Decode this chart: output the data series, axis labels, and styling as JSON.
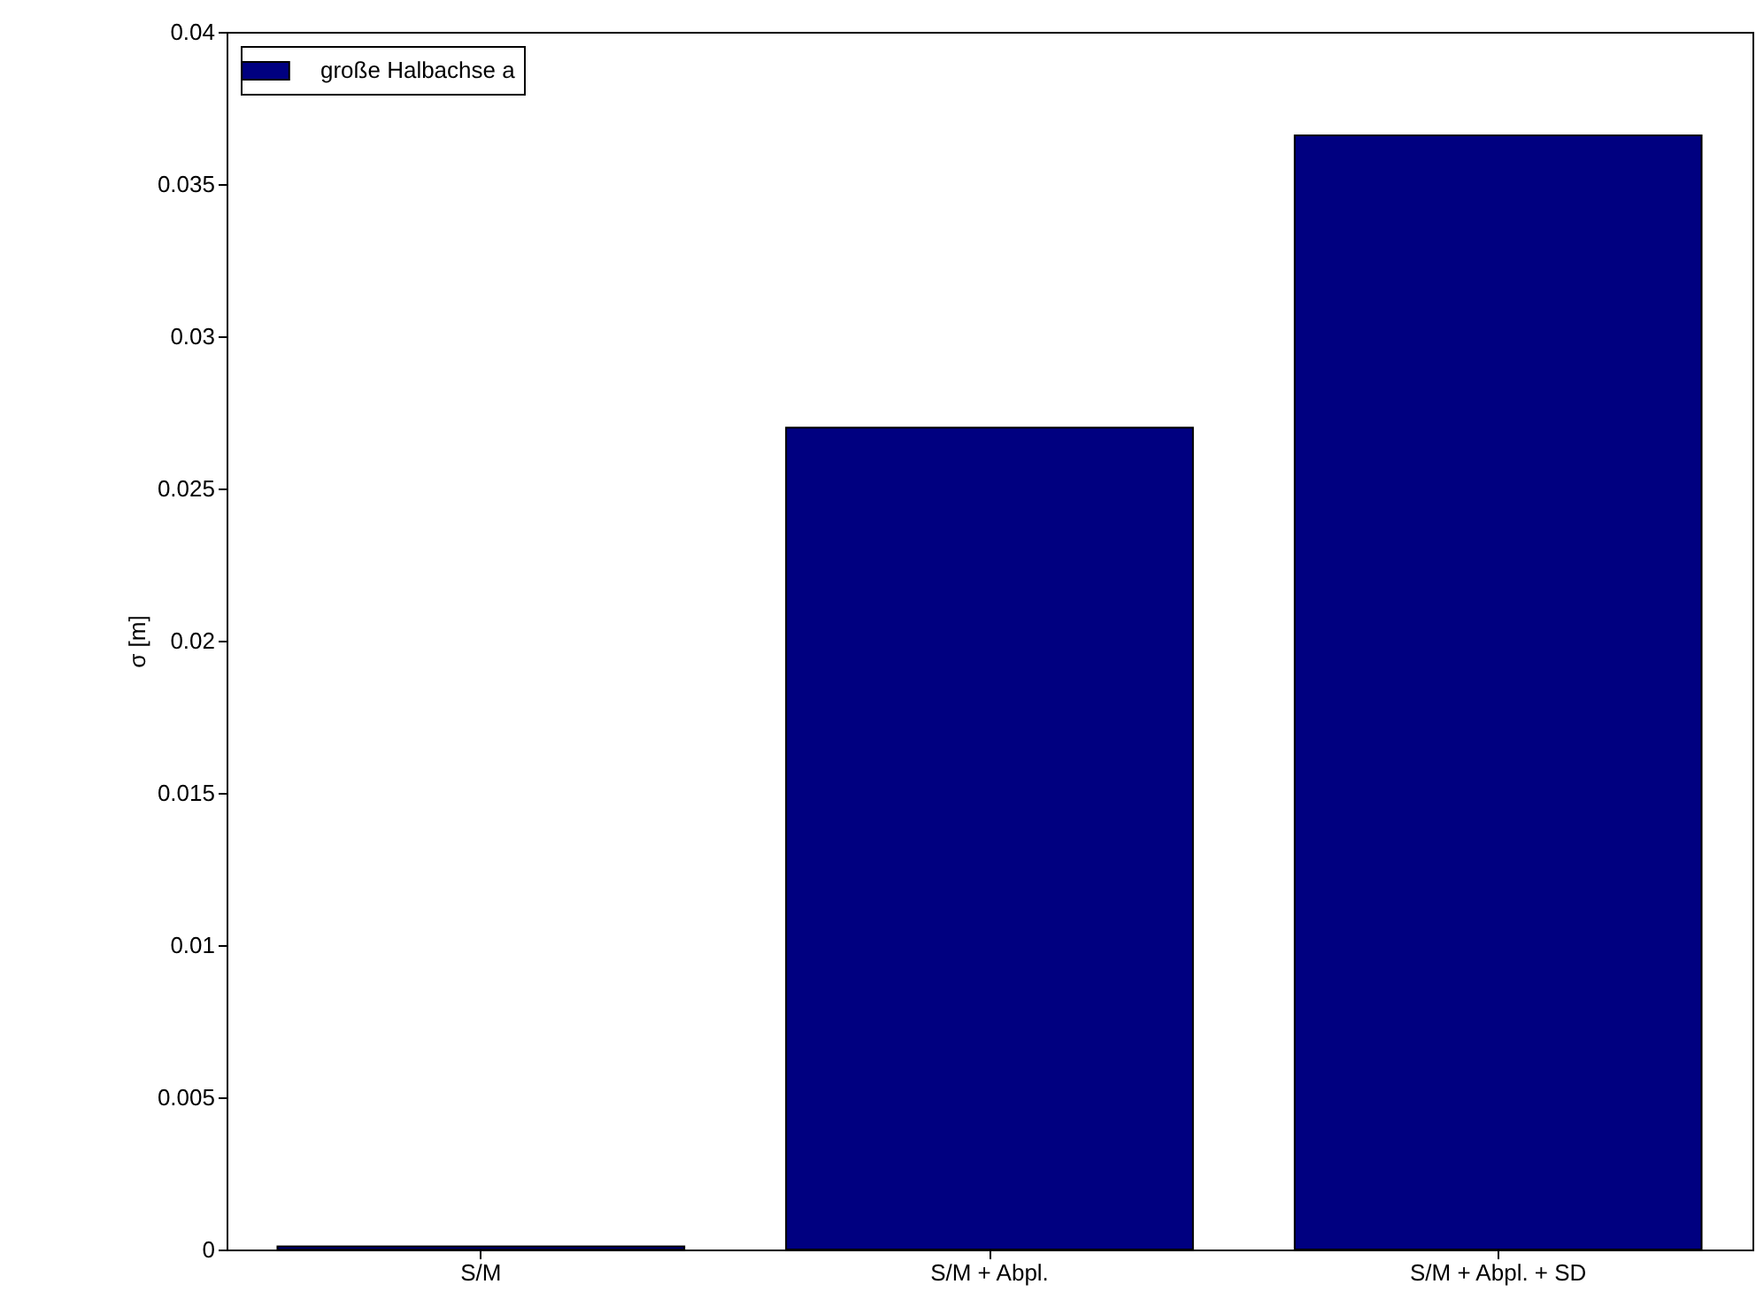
{
  "chart_data": {
    "type": "bar",
    "ylabel": "σ [m]",
    "categories": [
      "S/M",
      "S/M + Abpl.",
      "S/M + Abpl. + SD"
    ],
    "series": [
      {
        "name": "große Halbachse a",
        "color": "#000080",
        "values": [
          0.0001,
          0.027,
          0.0366
        ]
      }
    ],
    "ylim": [
      0,
      0.04
    ],
    "yticks": [
      0,
      0.005,
      0.01,
      0.015,
      0.02,
      0.025,
      0.03,
      0.035,
      0.04
    ],
    "grid": false,
    "legend": "top left"
  }
}
